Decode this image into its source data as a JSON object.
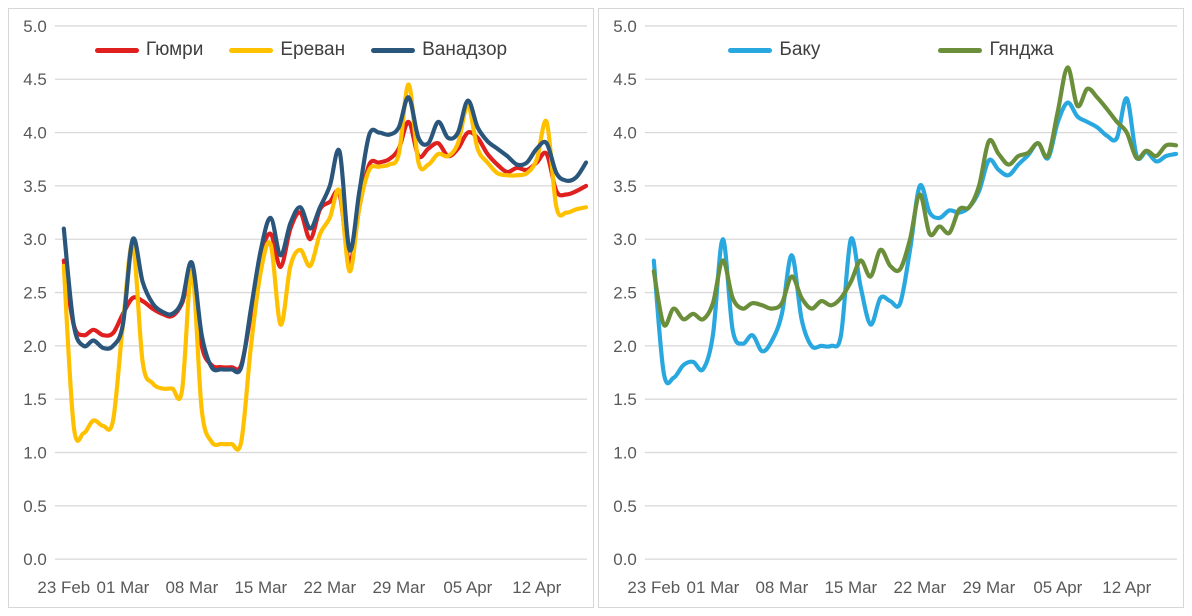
{
  "figure": {
    "background": "#ffffff",
    "panel_border_color": "#d6d6d6",
    "gridline_color": "#d9d9d9",
    "tick_label_color": "#595959",
    "legend_text_color": "#404040"
  },
  "chart_data": [
    {
      "type": "line",
      "panel": "left",
      "title": "",
      "xlabel": "",
      "ylabel": "",
      "ylim": [
        0.0,
        5.0
      ],
      "y_ticks": [
        "5.0",
        "4.5",
        "4.0",
        "3.5",
        "3.0",
        "2.5",
        "2.0",
        "1.5",
        "1.0",
        "0.5",
        "0.0"
      ],
      "x_tick_labels": [
        "23 Feb",
        "01 Mar",
        "08 Mar",
        "15 Mar",
        "22 Mar",
        "29 Mar",
        "05 Apr",
        "12 Apr"
      ],
      "x_tick_day_index": [
        0,
        6,
        13,
        20,
        27,
        34,
        41,
        48
      ],
      "x_unit": "day",
      "days_total": 54,
      "grid": "horizontal",
      "legend_position": "top-center",
      "smooth": true,
      "series": [
        {
          "name": "Гюмри",
          "color": "#e01f1f",
          "values": [
            2.8,
            2.2,
            2.1,
            2.15,
            2.1,
            2.12,
            2.3,
            2.45,
            2.42,
            2.35,
            2.3,
            2.28,
            2.4,
            2.67,
            2.0,
            1.82,
            1.8,
            1.8,
            1.82,
            2.3,
            2.85,
            3.05,
            2.74,
            3.1,
            3.25,
            3.0,
            3.28,
            3.35,
            3.42,
            2.78,
            3.3,
            3.7,
            3.72,
            3.75,
            3.85,
            4.1,
            3.78,
            3.85,
            3.9,
            3.78,
            3.85,
            4.0,
            3.95,
            3.8,
            3.7,
            3.63,
            3.67,
            3.65,
            3.72,
            3.8,
            3.45,
            3.42,
            3.45,
            3.5
          ]
        },
        {
          "name": "Ереван",
          "color": "#ffc000",
          "values": [
            2.75,
            1.25,
            1.18,
            1.3,
            1.25,
            1.3,
            2.2,
            2.95,
            1.85,
            1.65,
            1.6,
            1.6,
            1.58,
            2.7,
            1.4,
            1.1,
            1.08,
            1.08,
            1.1,
            2.0,
            2.7,
            2.95,
            2.2,
            2.75,
            2.9,
            2.75,
            3.05,
            3.2,
            3.45,
            2.7,
            3.3,
            3.65,
            3.68,
            3.7,
            3.8,
            4.45,
            3.72,
            3.7,
            3.8,
            3.78,
            3.9,
            4.25,
            3.85,
            3.72,
            3.62,
            3.6,
            3.6,
            3.62,
            3.75,
            4.1,
            3.3,
            3.25,
            3.28,
            3.3
          ]
        },
        {
          "name": "Ванадзор",
          "color": "#2a567c",
          "values": [
            3.1,
            2.2,
            2.0,
            2.05,
            1.98,
            2.0,
            2.2,
            3.0,
            2.6,
            2.4,
            2.32,
            2.3,
            2.42,
            2.78,
            2.1,
            1.8,
            1.78,
            1.78,
            1.8,
            2.35,
            2.9,
            3.2,
            2.85,
            3.15,
            3.3,
            3.1,
            3.3,
            3.5,
            3.82,
            2.9,
            3.45,
            3.98,
            4.0,
            3.98,
            4.05,
            4.33,
            3.95,
            3.9,
            4.1,
            3.95,
            4.0,
            4.3,
            4.05,
            3.92,
            3.85,
            3.78,
            3.7,
            3.72,
            3.85,
            3.9,
            3.62,
            3.55,
            3.58,
            3.72
          ]
        }
      ]
    },
    {
      "type": "line",
      "panel": "right",
      "title": "",
      "xlabel": "",
      "ylabel": "",
      "ylim": [
        0.0,
        5.0
      ],
      "y_ticks": [
        "5.0",
        "4.5",
        "4.0",
        "3.5",
        "3.0",
        "2.5",
        "2.0",
        "1.5",
        "1.0",
        "0.5",
        "0.0"
      ],
      "x_tick_labels": [
        "23 Feb",
        "01 Mar",
        "08 Mar",
        "15 Mar",
        "22 Mar",
        "29 Mar",
        "05 Apr",
        "12 Apr"
      ],
      "x_tick_day_index": [
        0,
        6,
        13,
        20,
        27,
        34,
        41,
        48
      ],
      "x_unit": "day",
      "days_total": 54,
      "grid": "horizontal",
      "legend_position": "top-center",
      "smooth": true,
      "series": [
        {
          "name": "Баку",
          "color": "#29a8df",
          "values": [
            2.8,
            1.75,
            1.7,
            1.82,
            1.85,
            1.78,
            2.1,
            3.0,
            2.15,
            2.02,
            2.1,
            1.95,
            2.05,
            2.3,
            2.85,
            2.25,
            2.0,
            2.0,
            2.0,
            2.1,
            3.0,
            2.55,
            2.2,
            2.45,
            2.42,
            2.4,
            2.9,
            3.5,
            3.25,
            3.2,
            3.27,
            3.25,
            3.3,
            3.45,
            3.74,
            3.65,
            3.6,
            3.7,
            3.79,
            3.9,
            3.76,
            4.1,
            4.28,
            4.15,
            4.1,
            4.05,
            3.97,
            3.95,
            4.32,
            3.78,
            3.82,
            3.73,
            3.78,
            3.8
          ]
        },
        {
          "name": "Гянджа",
          "color": "#6b8e3b",
          "values": [
            2.7,
            2.2,
            2.35,
            2.25,
            2.3,
            2.25,
            2.4,
            2.8,
            2.45,
            2.35,
            2.4,
            2.38,
            2.35,
            2.4,
            2.65,
            2.45,
            2.35,
            2.42,
            2.38,
            2.45,
            2.6,
            2.8,
            2.65,
            2.9,
            2.75,
            2.72,
            3.0,
            3.42,
            3.05,
            3.12,
            3.06,
            3.28,
            3.3,
            3.5,
            3.92,
            3.8,
            3.7,
            3.78,
            3.81,
            3.9,
            3.78,
            4.2,
            4.61,
            4.25,
            4.41,
            4.33,
            4.22,
            4.1,
            4.0,
            3.76,
            3.83,
            3.78,
            3.88,
            3.88
          ]
        }
      ]
    }
  ]
}
